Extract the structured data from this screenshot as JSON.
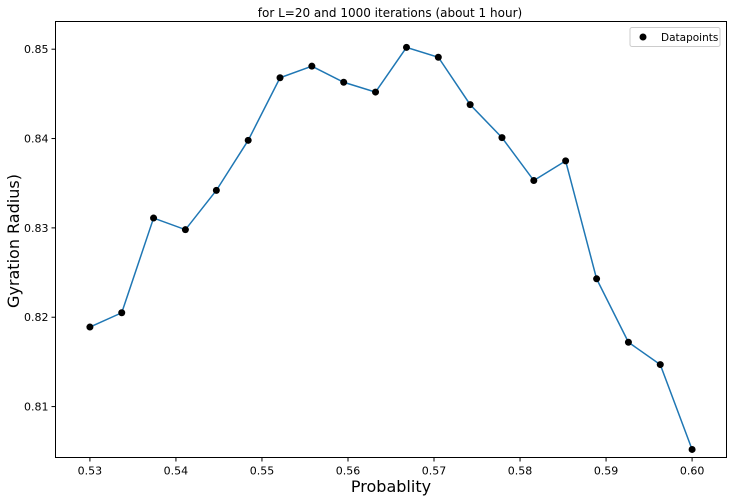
{
  "chart_data": {
    "type": "line",
    "title": "for L=20 and 1000 iterations (about 1 hour)",
    "xlabel": "Probablity",
    "ylabel": "Gyration Radius)",
    "xlim": [
      0.526,
      0.604
    ],
    "ylim": [
      0.8043,
      0.8531
    ],
    "xticks": [
      0.53,
      0.54,
      0.55,
      0.56,
      0.57,
      0.58,
      0.59,
      0.6
    ],
    "xtick_labels": [
      "0.53",
      "0.54",
      "0.55",
      "0.56",
      "0.57",
      "0.58",
      "0.59",
      "0.60"
    ],
    "yticks": [
      0.81,
      0.82,
      0.83,
      0.84,
      0.85
    ],
    "ytick_labels": [
      "0.81",
      "0.82",
      "0.83",
      "0.84",
      "0.85"
    ],
    "grid": false,
    "legend_position": "top-right",
    "line_color": "#1f77b4",
    "marker_color": "#000000",
    "series": [
      {
        "name": "Datapoints",
        "x": [
          0.53,
          0.5337,
          0.5374,
          0.5411,
          0.5447,
          0.5484,
          0.5521,
          0.5558,
          0.5595,
          0.5632,
          0.5668,
          0.5705,
          0.5742,
          0.5779,
          0.5816,
          0.5853,
          0.5889,
          0.5926,
          0.5963,
          0.6
        ],
        "y": [
          0.8189,
          0.8205,
          0.8311,
          0.8298,
          0.8342,
          0.8398,
          0.8468,
          0.8481,
          0.8463,
          0.8452,
          0.8502,
          0.8491,
          0.8438,
          0.8401,
          0.8353,
          0.8375,
          0.8243,
          0.8172,
          0.8147,
          0.8052
        ]
      }
    ]
  }
}
